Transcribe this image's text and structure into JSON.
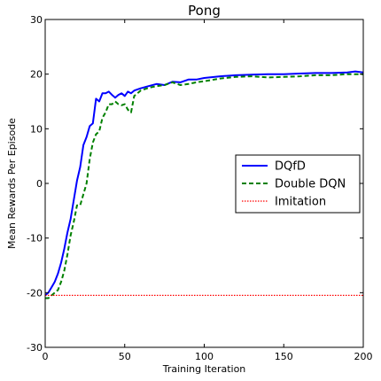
{
  "chart_data": {
    "type": "line",
    "title": "Pong",
    "xlabel": "Training Iteration",
    "ylabel": "Mean Rewards Per Episode",
    "xlim": [
      0,
      200
    ],
    "ylim": [
      -30,
      30
    ],
    "xticks": [
      0,
      50,
      100,
      150,
      200
    ],
    "yticks": [
      -30,
      -20,
      -10,
      0,
      10,
      20,
      30
    ],
    "grid": false,
    "legend_position": "center-right",
    "series": [
      {
        "name": "DQfD",
        "color": "#0000ff",
        "style": "solid",
        "x": [
          0,
          2,
          4,
          6,
          8,
          10,
          12,
          14,
          16,
          18,
          20,
          22,
          24,
          26,
          28,
          30,
          32,
          34,
          36,
          38,
          40,
          42,
          44,
          46,
          48,
          50,
          52,
          54,
          56,
          58,
          60,
          65,
          70,
          75,
          80,
          85,
          90,
          95,
          100,
          110,
          120,
          130,
          140,
          150,
          160,
          170,
          180,
          190,
          195,
          200
        ],
        "y": [
          -20.5,
          -20,
          -19,
          -18,
          -16.5,
          -14.5,
          -12,
          -9,
          -6.5,
          -3,
          0.5,
          3,
          7,
          8.5,
          10.5,
          11,
          15.5,
          15,
          16.5,
          16.5,
          16.8,
          16.2,
          15.7,
          16.2,
          16.5,
          16.0,
          16.8,
          16.5,
          17,
          17.2,
          17.4,
          17.8,
          18.2,
          18.0,
          18.6,
          18.5,
          19.0,
          19.0,
          19.3,
          19.6,
          19.8,
          19.9,
          20.0,
          20.0,
          20.1,
          20.2,
          20.2,
          20.3,
          20.5,
          20.3
        ]
      },
      {
        "name": "Double DQN",
        "color": "#008000",
        "style": "dashed",
        "x": [
          0,
          2,
          4,
          6,
          8,
          10,
          12,
          14,
          16,
          18,
          20,
          22,
          24,
          26,
          28,
          30,
          32,
          34,
          36,
          38,
          40,
          42,
          44,
          46,
          48,
          50,
          52,
          54,
          56,
          58,
          60,
          65,
          70,
          75,
          80,
          85,
          90,
          95,
          100,
          110,
          120,
          130,
          140,
          150,
          160,
          170,
          180,
          190,
          195,
          200
        ],
        "y": [
          -21,
          -21,
          -20.5,
          -20,
          -19.5,
          -18,
          -16,
          -13,
          -9.5,
          -7,
          -4,
          -4,
          -2,
          0,
          4.5,
          7.5,
          9,
          9.5,
          12,
          13,
          14.5,
          14.5,
          15,
          14.5,
          14.3,
          14.5,
          13.5,
          13,
          16,
          16.5,
          17,
          17.5,
          17.8,
          18.0,
          18.5,
          18.0,
          18.2,
          18.5,
          18.7,
          19.2,
          19.5,
          19.6,
          19.4,
          19.5,
          19.6,
          19.8,
          19.8,
          20.0,
          20.0,
          20.0
        ]
      },
      {
        "name": "Imitation",
        "color": "#ff0000",
        "style": "dotted",
        "x": [
          0,
          200
        ],
        "y": [
          -20.5,
          -20.5
        ]
      }
    ]
  }
}
